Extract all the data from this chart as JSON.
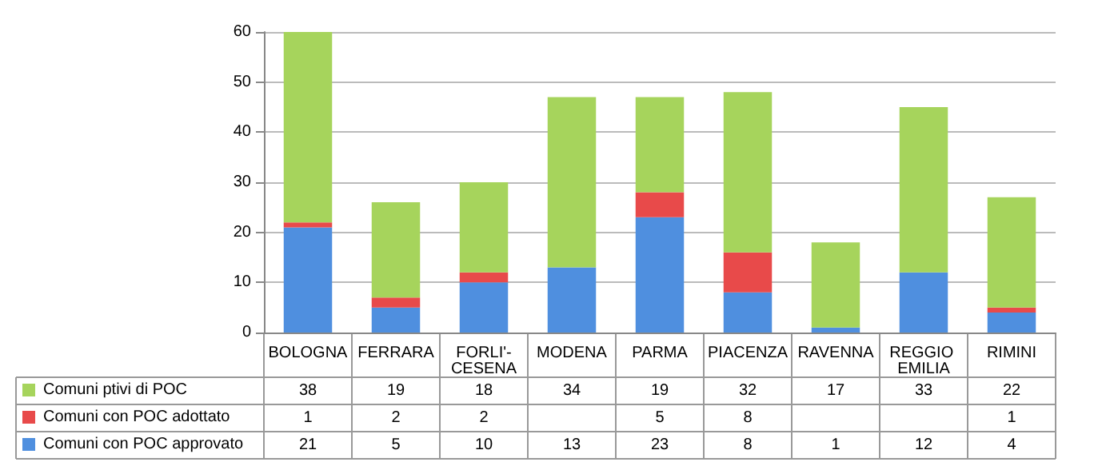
{
  "chart_data": {
    "type": "bar",
    "stacked": true,
    "categories": [
      "BOLOGNA",
      "FERRARA",
      "FORLI'-CESENA",
      "MODENA",
      "PARMA",
      "PIACENZA",
      "RAVENNA",
      "REGGIO EMILIA",
      "RIMINI"
    ],
    "series": [
      {
        "name": "Comuni con POC approvato",
        "color": "#4f8fdf",
        "values": [
          21,
          5,
          10,
          13,
          23,
          8,
          1,
          12,
          4
        ]
      },
      {
        "name": "Comuni con POC adottato",
        "color": "#e84a4a",
        "values": [
          1,
          2,
          2,
          null,
          5,
          8,
          null,
          null,
          1
        ]
      },
      {
        "name": "Comuni ptivi di POC",
        "color": "#a6d45c",
        "values": [
          38,
          19,
          18,
          34,
          19,
          32,
          17,
          33,
          22
        ]
      }
    ],
    "ylim": [
      0,
      60
    ],
    "yticks": [
      0,
      10,
      20,
      30,
      40,
      50,
      60
    ],
    "grid": "y",
    "legend": "bottom left",
    "data_labels": true
  }
}
